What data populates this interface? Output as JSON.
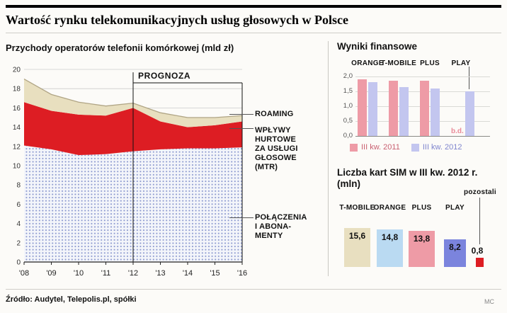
{
  "page": {
    "title": "Wartość rynku telekomunikacyjnych usług głosowych w Polsce",
    "source": "Źródło: Audytel, Telepolis.pl, spółki",
    "credit": "MC"
  },
  "left_chart": {
    "title": "Przychody operatorów telefonii komórkowej (mld zł)",
    "forecast_label": "PROGNOZA",
    "labels": {
      "roaming": "ROAMING",
      "mtr": "WPŁYWY\nHURTOWE\nZA USŁUGI\nGŁOSOWE\n(MTR)",
      "subscriptions": "POŁĄCZENIA\nI ABONA-\nMENTY"
    }
  },
  "fin_chart": {
    "title": "Wyniki finansowe",
    "y_tick_labels": [
      "2,0",
      "1,5",
      "1,0",
      "0,5",
      "0,0"
    ],
    "legend": [
      {
        "label": "III kw. 2011",
        "color": "#ee9ba6"
      },
      {
        "label": "III kw. 2012",
        "color": "#c3c6ef"
      }
    ]
  },
  "sim_chart": {
    "title_line1": "Liczba kart SIM w III kw. 2012 r.",
    "title_line2": "(mln)",
    "value_labels": [
      "15,6",
      "14,8",
      "13,8",
      "8,2",
      "0,8"
    ]
  },
  "chart_data": [
    {
      "type": "area",
      "title": "Przychody operatorów telefonii komórkowej (mld zł)",
      "stacked": true,
      "x": [
        "'08",
        "'09",
        "'10",
        "'11",
        "'12",
        "'13",
        "'14",
        "'15",
        "'16"
      ],
      "ylim": [
        0,
        20
      ],
      "y_ticks": [
        0,
        2,
        4,
        6,
        8,
        10,
        12,
        14,
        16,
        18,
        20
      ],
      "annotation": {
        "label": "PROGNOZA",
        "from_x": "'12"
      },
      "series": [
        {
          "name": "POŁĄCZENIA I ABONAMENTY",
          "color": "dots",
          "values": [
            12.1,
            11.7,
            11.1,
            11.2,
            11.5,
            11.7,
            11.8,
            11.8,
            11.9
          ]
        },
        {
          "name": "WPŁYWY HURTOWE ZA USŁUGI GŁOSOWE (MTR)",
          "color": "#dd1d23",
          "values": [
            4.5,
            4.0,
            4.2,
            4.0,
            4.5,
            2.9,
            2.2,
            2.4,
            2.7
          ]
        },
        {
          "name": "ROAMING",
          "color": "#e8dfbf",
          "values": [
            2.4,
            1.7,
            1.3,
            1.0,
            0.5,
            0.9,
            1.0,
            0.8,
            0.6
          ]
        }
      ]
    },
    {
      "type": "bar",
      "title": "Wyniki finansowe",
      "categories": [
        "ORANGE",
        "T-MOBILE",
        "PLUS",
        "PLAY"
      ],
      "ylim": [
        0,
        2.0
      ],
      "series": [
        {
          "name": "III kw. 2011",
          "color": "#ee9ba6",
          "null_label": "b.d.",
          "values": [
            1.9,
            1.85,
            1.85,
            null
          ]
        },
        {
          "name": "III kw. 2012",
          "color": "#c3c6ef",
          "values": [
            1.8,
            1.65,
            1.6,
            1.5
          ]
        }
      ],
      "legend_position": "bottom"
    },
    {
      "type": "bar",
      "title": "Liczba kart SIM w III kw. 2012 r. (mln)",
      "categories": [
        "T-MOBILE",
        "ORANGE",
        "PLUS",
        "PLAY",
        "pozostali"
      ],
      "values": [
        15.6,
        14.8,
        13.8,
        8.2,
        0.8
      ],
      "colors": [
        "#e8dfc0",
        "#badaf2",
        "#ee9ba6",
        "#7b84dd",
        "#dd1d23"
      ]
    }
  ]
}
